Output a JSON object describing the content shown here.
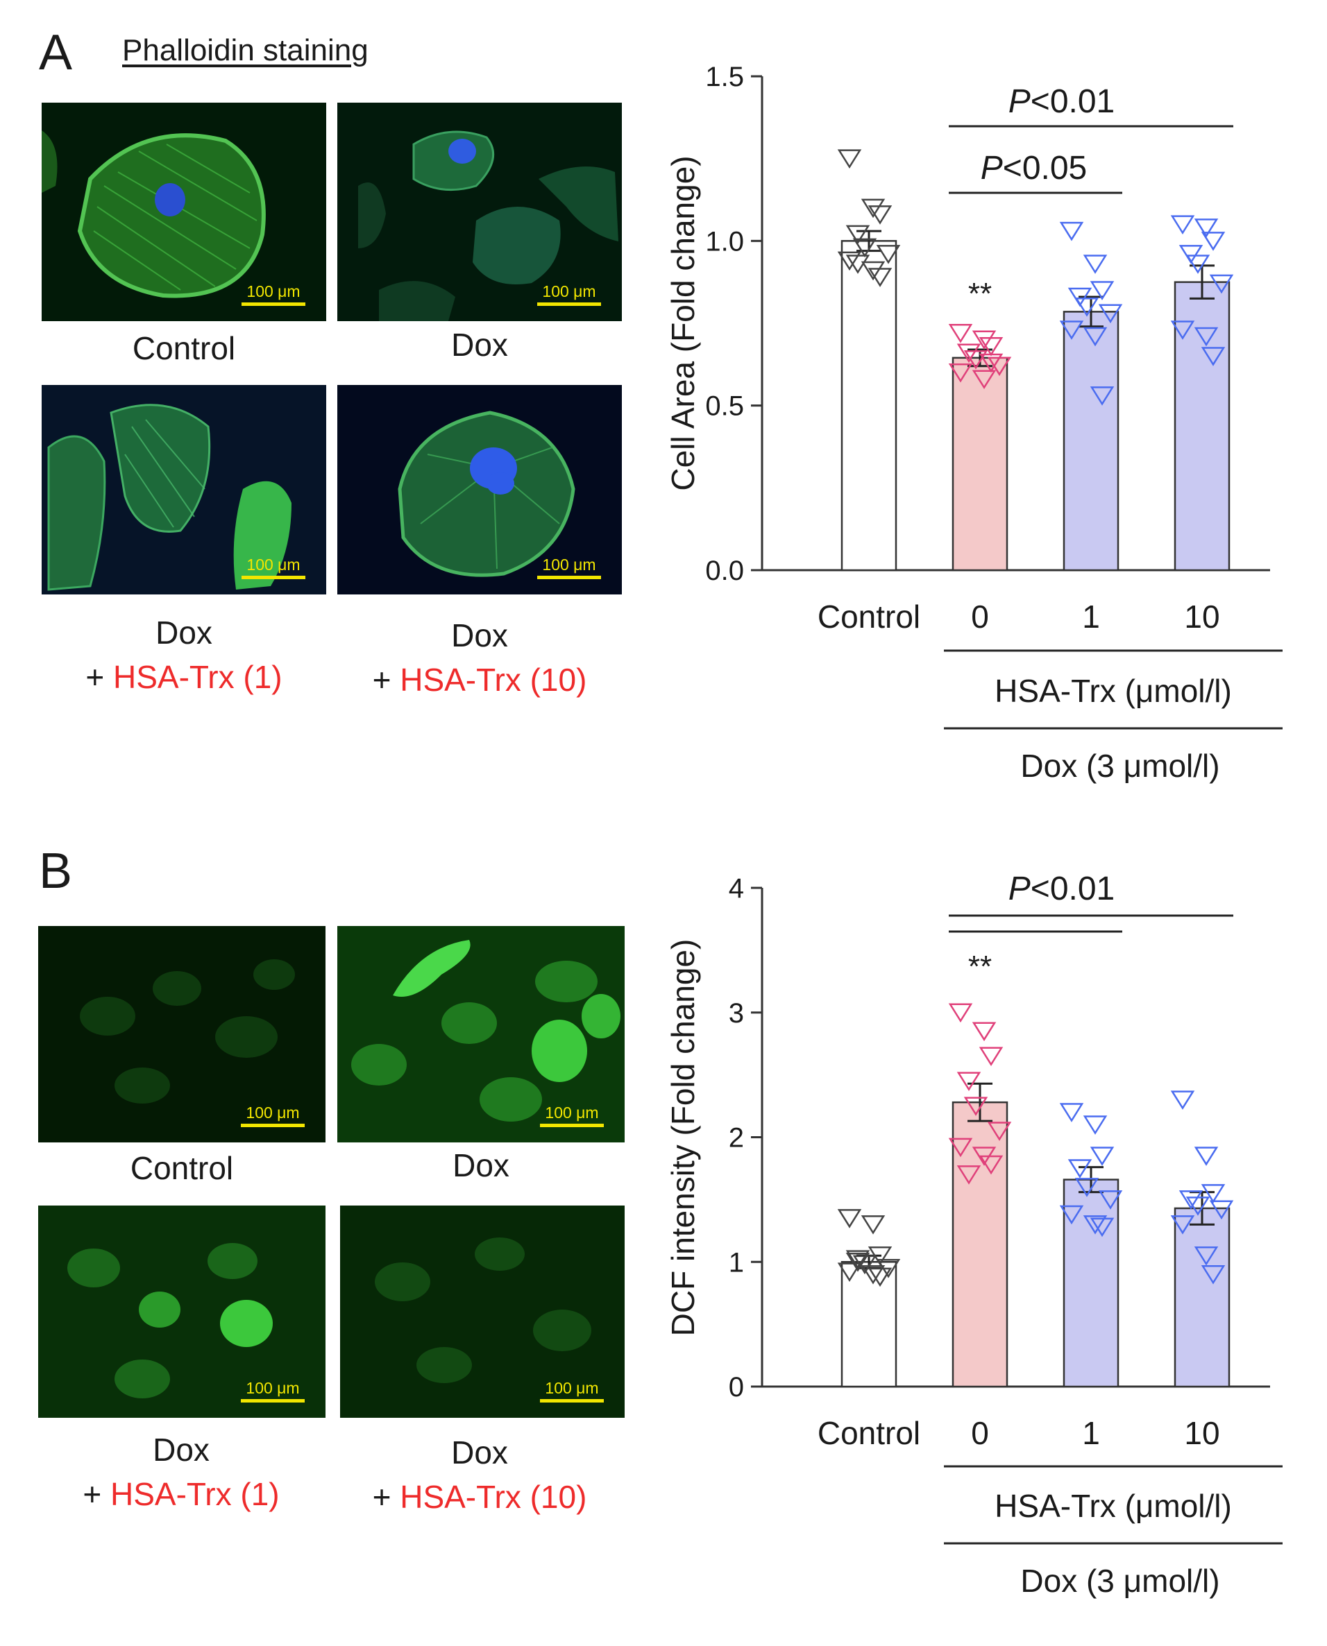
{
  "panels": [
    {
      "letter": "A",
      "subtitle": "Phalloidin staining",
      "images": [
        {
          "caption_line1": "Control",
          "caption_plus": "",
          "caption_line2": "",
          "scale_bar": "100 μm"
        },
        {
          "caption_line1": "Dox",
          "caption_plus": "",
          "caption_line2": "",
          "scale_bar": "100 μm"
        },
        {
          "caption_line1": "Dox",
          "caption_plus": "+ ",
          "caption_line2": "HSA-Trx (1)",
          "scale_bar": "100 μm"
        },
        {
          "caption_line1": "Dox",
          "caption_plus": "+ ",
          "caption_line2": "HSA-Trx (10)",
          "scale_bar": "100 μm"
        }
      ]
    },
    {
      "letter": "B",
      "subtitle": "",
      "images": [
        {
          "caption_line1": "Control",
          "caption_plus": "",
          "caption_line2": "",
          "scale_bar": "100 μm"
        },
        {
          "caption_line1": "Dox",
          "caption_plus": "",
          "caption_line2": "",
          "scale_bar": "100 μm"
        },
        {
          "caption_line1": "Dox",
          "caption_plus": "+ ",
          "caption_line2": "HSA-Trx (1)",
          "scale_bar": "100 μm"
        },
        {
          "caption_line1": "Dox",
          "caption_plus": "+ ",
          "caption_line2": "HSA-Trx (10)",
          "scale_bar": "100 μm"
        }
      ]
    }
  ],
  "colors": {
    "control_fill": "#ffffff",
    "dox_fill": "#f4c9c9",
    "trx_fill": "#c9c9f2",
    "control_marker": "#444444",
    "dox_marker": "#e0407a",
    "trx_marker": "#4a6cf0",
    "caption_red": "#ee2b2b",
    "scale_bar": "#f2e600"
  },
  "chart_data": [
    {
      "type": "bar",
      "ylabel": "Cell Area (Fold change)",
      "ylim": [
        0,
        1.5
      ],
      "yticks": [
        "0.0",
        "0.5",
        "1.0",
        "1.5"
      ],
      "categories": [
        "Control",
        "0",
        "1",
        "10"
      ],
      "group_label": "HSA-Trx (μmol/l)",
      "outer_label": "Dox (3 μmol/l)",
      "values": [
        1.0,
        0.645,
        0.785,
        0.875
      ],
      "sem": [
        0.03,
        0.025,
        0.045,
        0.05
      ],
      "points": [
        [
          1.25,
          1.1,
          1.08,
          1.02,
          0.98,
          0.96,
          0.94,
          0.91,
          0.89,
          0.93
        ],
        [
          0.72,
          0.7,
          0.68,
          0.66,
          0.64,
          0.62,
          0.6,
          0.58,
          0.63
        ],
        [
          1.03,
          0.93,
          0.85,
          0.83,
          0.8,
          0.78,
          0.73,
          0.71,
          0.53
        ],
        [
          1.05,
          1.04,
          1.0,
          0.96,
          0.93,
          0.87,
          0.73,
          0.71,
          0.65
        ]
      ],
      "significance": [
        {
          "text": "**",
          "group": 1
        }
      ],
      "brackets": [
        {
          "from": 1,
          "to": 3,
          "label_italic": "P",
          "label_rest": "<0.01"
        },
        {
          "from": 1,
          "to": 2,
          "label_italic": "P",
          "label_rest": "<0.05"
        }
      ]
    },
    {
      "type": "bar",
      "ylabel": "DCF intensity (Fold change)",
      "ylim": [
        0,
        4
      ],
      "yticks": [
        "0",
        "1",
        "2",
        "3",
        "4"
      ],
      "categories": [
        "Control",
        "0",
        "1",
        "10"
      ],
      "group_label": "HSA-Trx (μmol/l)",
      "outer_label": "Dox (3 μmol/l)",
      "values": [
        1.0,
        2.28,
        1.66,
        1.43
      ],
      "sem": [
        0.05,
        0.15,
        0.1,
        0.13
      ],
      "points": [
        [
          1.35,
          1.3,
          1.05,
          1.0,
          0.98,
          0.95,
          0.92,
          0.9,
          0.88,
          1.02
        ],
        [
          3.0,
          2.85,
          2.65,
          2.45,
          2.25,
          2.05,
          1.92,
          1.85,
          1.78,
          1.7
        ],
        [
          2.2,
          2.1,
          1.85,
          1.75,
          1.6,
          1.5,
          1.38,
          1.3,
          1.28
        ],
        [
          2.3,
          1.85,
          1.55,
          1.5,
          1.45,
          1.42,
          1.3,
          1.05,
          0.9
        ]
      ],
      "significance": [
        {
          "text": "**",
          "group": 1
        }
      ],
      "brackets": [
        {
          "from": 1,
          "to": 3,
          "label_italic": "P",
          "label_rest": "<0.01"
        },
        {
          "from": 1,
          "to": 2,
          "label_italic": "",
          "label_rest": ""
        }
      ]
    }
  ]
}
